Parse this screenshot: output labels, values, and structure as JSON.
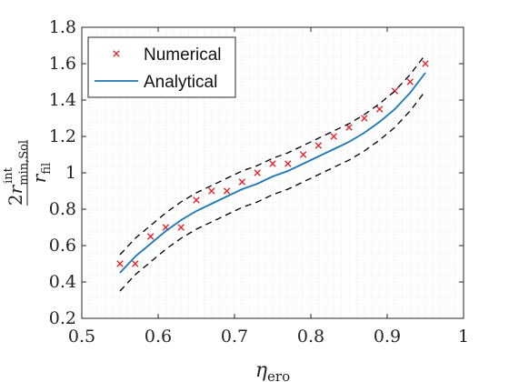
{
  "chart_data": {
    "type": "line",
    "xlabel": {
      "base": "η",
      "sub": "ero"
    },
    "ylabel": {
      "numerator_prefix": "2",
      "numerator_base": "r",
      "numerator_sup": "int",
      "numerator_sub": "min,Sol",
      "denominator_base": "r",
      "denominator_sub": "fil"
    },
    "xlim": [
      0.5,
      1.0
    ],
    "ylim": [
      0.2,
      1.8
    ],
    "x_ticks": [
      "0.5",
      "0.6",
      "0.7",
      "0.8",
      "0.9",
      "1"
    ],
    "y_ticks": [
      "0.2",
      "0.4",
      "0.6",
      "0.8",
      "1",
      "1.2",
      "1.4",
      "1.6",
      "1.8"
    ],
    "grid": "minor dotted",
    "legend": {
      "placement": "top-left",
      "entries": [
        "Numerical",
        "Analytical"
      ]
    },
    "series": [
      {
        "name": "Numerical",
        "style": "markers-x",
        "color": "#e8242b",
        "x": [
          0.55,
          0.57,
          0.59,
          0.61,
          0.63,
          0.65,
          0.67,
          0.69,
          0.71,
          0.73,
          0.75,
          0.77,
          0.79,
          0.81,
          0.83,
          0.85,
          0.87,
          0.89,
          0.91,
          0.93,
          0.95
        ],
        "y": [
          0.5,
          0.5,
          0.65,
          0.7,
          0.7,
          0.85,
          0.9,
          0.9,
          0.95,
          1.0,
          1.05,
          1.05,
          1.1,
          1.15,
          1.2,
          1.25,
          1.3,
          1.35,
          1.45,
          1.5,
          1.6
        ]
      },
      {
        "name": "Analytical",
        "style": "solid",
        "color": "#1f77b4",
        "x": [
          0.55,
          0.57,
          0.59,
          0.61,
          0.63,
          0.65,
          0.67,
          0.69,
          0.71,
          0.73,
          0.75,
          0.77,
          0.79,
          0.81,
          0.83,
          0.85,
          0.87,
          0.89,
          0.91,
          0.93,
          0.95
        ],
        "y": [
          0.45,
          0.54,
          0.61,
          0.68,
          0.74,
          0.79,
          0.83,
          0.87,
          0.91,
          0.94,
          0.98,
          1.01,
          1.05,
          1.09,
          1.13,
          1.17,
          1.22,
          1.28,
          1.35,
          1.44,
          1.55
        ]
      },
      {
        "style": "dashed",
        "color": "#000000",
        "x": [
          0.55,
          0.57,
          0.59,
          0.61,
          0.63,
          0.65,
          0.67,
          0.69,
          0.71,
          0.73,
          0.75,
          0.77,
          0.79,
          0.81,
          0.83,
          0.85,
          0.87,
          0.89,
          0.91,
          0.93,
          0.95
        ],
        "y": [
          0.55,
          0.64,
          0.71,
          0.78,
          0.84,
          0.89,
          0.93,
          0.97,
          1.01,
          1.04,
          1.08,
          1.11,
          1.15,
          1.19,
          1.23,
          1.27,
          1.32,
          1.38,
          1.45,
          1.54,
          1.65
        ]
      },
      {
        "style": "dashed",
        "color": "#000000",
        "x": [
          0.55,
          0.57,
          0.59,
          0.61,
          0.63,
          0.65,
          0.67,
          0.69,
          0.71,
          0.73,
          0.75,
          0.77,
          0.79,
          0.81,
          0.83,
          0.85,
          0.87,
          0.89,
          0.91,
          0.93,
          0.95
        ],
        "y": [
          0.35,
          0.44,
          0.51,
          0.58,
          0.64,
          0.69,
          0.73,
          0.77,
          0.81,
          0.84,
          0.88,
          0.91,
          0.95,
          0.99,
          1.03,
          1.07,
          1.12,
          1.18,
          1.25,
          1.34,
          1.45
        ]
      }
    ]
  }
}
